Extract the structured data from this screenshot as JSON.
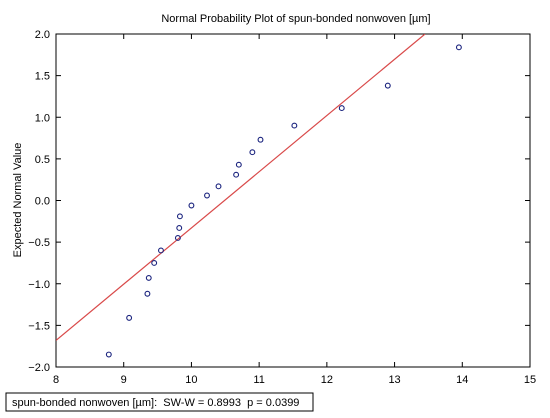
{
  "chart_data": {
    "type": "scatter",
    "title": "Normal Probability Plot of spun-bonded nonwoven [µm]",
    "xlabel": "",
    "ylabel": "Expected Normal Value",
    "xlim": [
      8,
      15
    ],
    "ylim": [
      -2.0,
      2.0
    ],
    "x_ticks": [
      8,
      9,
      10,
      11,
      12,
      13,
      14,
      15
    ],
    "y_ticks": [
      -2.0,
      -1.5,
      -1.0,
      -0.5,
      0.0,
      0.5,
      1.0,
      1.5,
      2.0
    ],
    "y_tick_labels": [
      "−2.0",
      "−1.5",
      "−1.0",
      "−0.5",
      "0.0",
      "0.5",
      "1.0",
      "1.5",
      "2.0"
    ],
    "grid": false,
    "points": [
      {
        "x": 8.78,
        "y": -1.85
      },
      {
        "x": 9.08,
        "y": -1.41
      },
      {
        "x": 9.35,
        "y": -1.12
      },
      {
        "x": 9.37,
        "y": -0.93
      },
      {
        "x": 9.45,
        "y": -0.75
      },
      {
        "x": 9.55,
        "y": -0.6
      },
      {
        "x": 9.8,
        "y": -0.45
      },
      {
        "x": 9.82,
        "y": -0.33
      },
      {
        "x": 9.83,
        "y": -0.19
      },
      {
        "x": 10.0,
        "y": -0.06
      },
      {
        "x": 10.23,
        "y": 0.06
      },
      {
        "x": 10.4,
        "y": 0.17
      },
      {
        "x": 10.66,
        "y": 0.31
      },
      {
        "x": 10.7,
        "y": 0.43
      },
      {
        "x": 10.9,
        "y": 0.58
      },
      {
        "x": 11.02,
        "y": 0.73
      },
      {
        "x": 11.52,
        "y": 0.9
      },
      {
        "x": 12.22,
        "y": 1.11
      },
      {
        "x": 12.9,
        "y": 1.38
      },
      {
        "x": 13.95,
        "y": 1.84
      }
    ],
    "fit_line": {
      "x": [
        8.0,
        13.45
      ],
      "y": [
        -1.68,
        2.0
      ]
    },
    "colors": {
      "points": "#1a237e",
      "fit_line": "#d94a4a",
      "axes": "#000000"
    },
    "caption": "spun-bonded nonwoven [µm]:  SW-W = 0.8993  p = 0.0399"
  }
}
